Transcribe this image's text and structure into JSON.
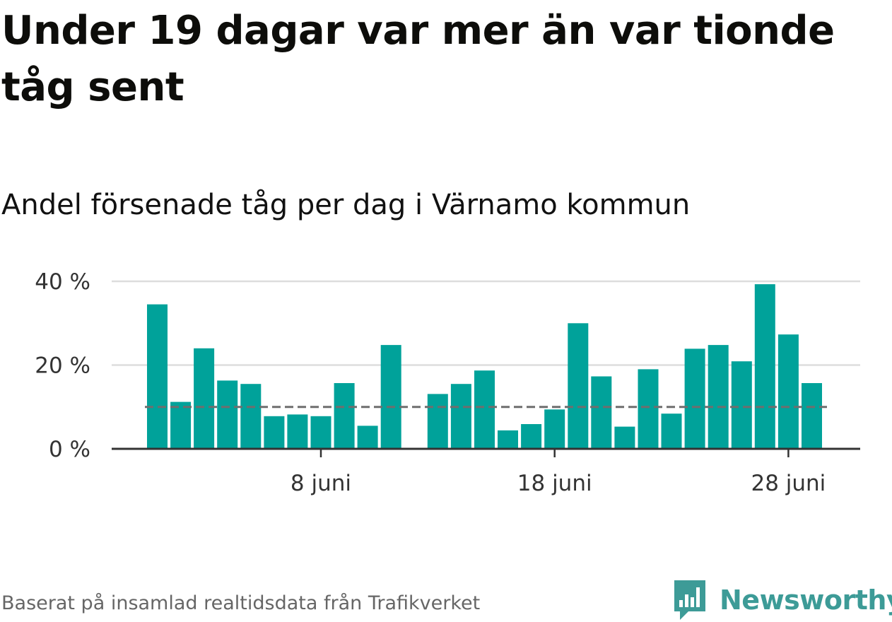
{
  "title": "Under 19 dagar var mer än var tionde tåg sent",
  "subtitle": "Andel försenade tåg per dag i Värnamo kommun",
  "footer": {
    "source": "Baserat på insamlad realtidsdata från Trafikverket",
    "brand": "Newsworthy",
    "brand_icon": "chart-bubble-icon"
  },
  "colors": {
    "bar": "#00a29a",
    "reference_line": "#6e6e6e",
    "grid": "#dddddd",
    "axis": "#333333",
    "brand": "#3d9b97"
  },
  "chart_data": {
    "type": "bar",
    "x": [
      "1 juni",
      "2 juni",
      "3 juni",
      "4 juni",
      "5 juni",
      "6 juni",
      "7 juni",
      "8 juni",
      "9 juni",
      "10 juni",
      "11 juni",
      "12 juni",
      "13 juni",
      "14 juni",
      "15 juni",
      "16 juni",
      "17 juni",
      "18 juni",
      "19 juni",
      "20 juni",
      "21 juni",
      "22 juni",
      "23 juni",
      "24 juni",
      "25 juni",
      "26 juni",
      "27 juni",
      "28 juni",
      "29 juni"
    ],
    "values": [
      34.5,
      11.2,
      24.0,
      16.3,
      15.5,
      7.8,
      8.2,
      7.8,
      15.7,
      5.5,
      24.8,
      null,
      13.1,
      15.5,
      18.7,
      4.4,
      5.9,
      9.4,
      30.0,
      17.3,
      5.3,
      19.0,
      8.4,
      23.9,
      24.8,
      20.9,
      39.3,
      27.3,
      15.7
    ],
    "reference_line": 10,
    "ylim": [
      0,
      40
    ],
    "y_ticks": [
      0,
      20,
      40
    ],
    "y_tick_labels": [
      "0 %",
      "20 %",
      "40 %"
    ],
    "x_tick_indices": [
      7,
      17,
      27
    ],
    "x_tick_labels": [
      "8 juni",
      "18 juni",
      "28 juni"
    ],
    "grid": true
  }
}
